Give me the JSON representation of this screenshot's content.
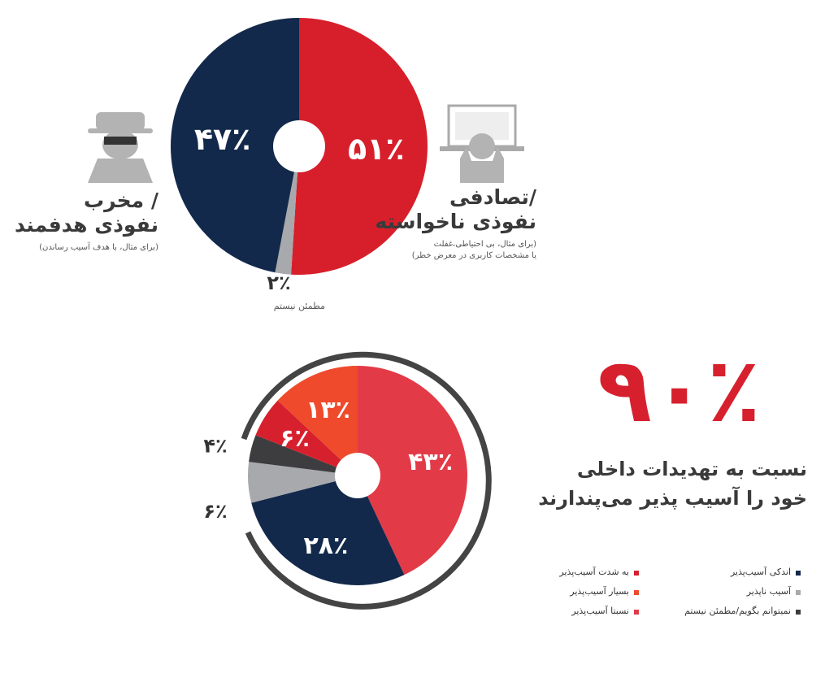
{
  "chart_data": [
    {
      "type": "pie",
      "categories": [
        [
          "/تصادفی",
          "نفوذی ناخواسته"
        ],
        [
          "مطمئن نیستم"
        ],
        [
          "/ مخرب",
          "نفوذی هدفمند"
        ]
      ],
      "notes": [
        [
          "(برای مثال، بی احتیاطی،غفلت",
          "یا مشخصات کاربری در معرض خطر)"
        ],
        [],
        [
          "(برای مثال، با هدف آسیب رساندن)"
        ]
      ],
      "values": [
        51,
        2,
        47
      ],
      "value_labels": [
        "۵۱٪",
        "۲٪",
        "۴۷٪"
      ],
      "colors": [
        "#d71f2b",
        "#a7a9ac",
        "#13294b"
      ]
    },
    {
      "type": "pie",
      "annotation": "۹۰٪",
      "subtitle": [
        "نسبت به تهدیدات داخلی",
        "خود را آسیب پذیر می‌پندارند"
      ],
      "categories": [
        "نسبتا آسیب‌پذیر",
        "اندکی آسیب‌پذیر",
        "آسیب ناپذیر",
        "نمیتوانم بگویم/مطمئن نیستم",
        "به شدت آسیب‌پذیر",
        "بسیار آسیب‌پذیر"
      ],
      "values": [
        43,
        28,
        6,
        4,
        6,
        13
      ],
      "value_labels": [
        "۴۳٪",
        "۲۸٪",
        "۶٪",
        "۴٪",
        "۶٪",
        "۱۳٪"
      ],
      "colors": [
        "#e23b47",
        "#13294b",
        "#a7a9ac",
        "#3d3d3f",
        "#d7202e",
        "#ee4a2b"
      ]
    }
  ]
}
